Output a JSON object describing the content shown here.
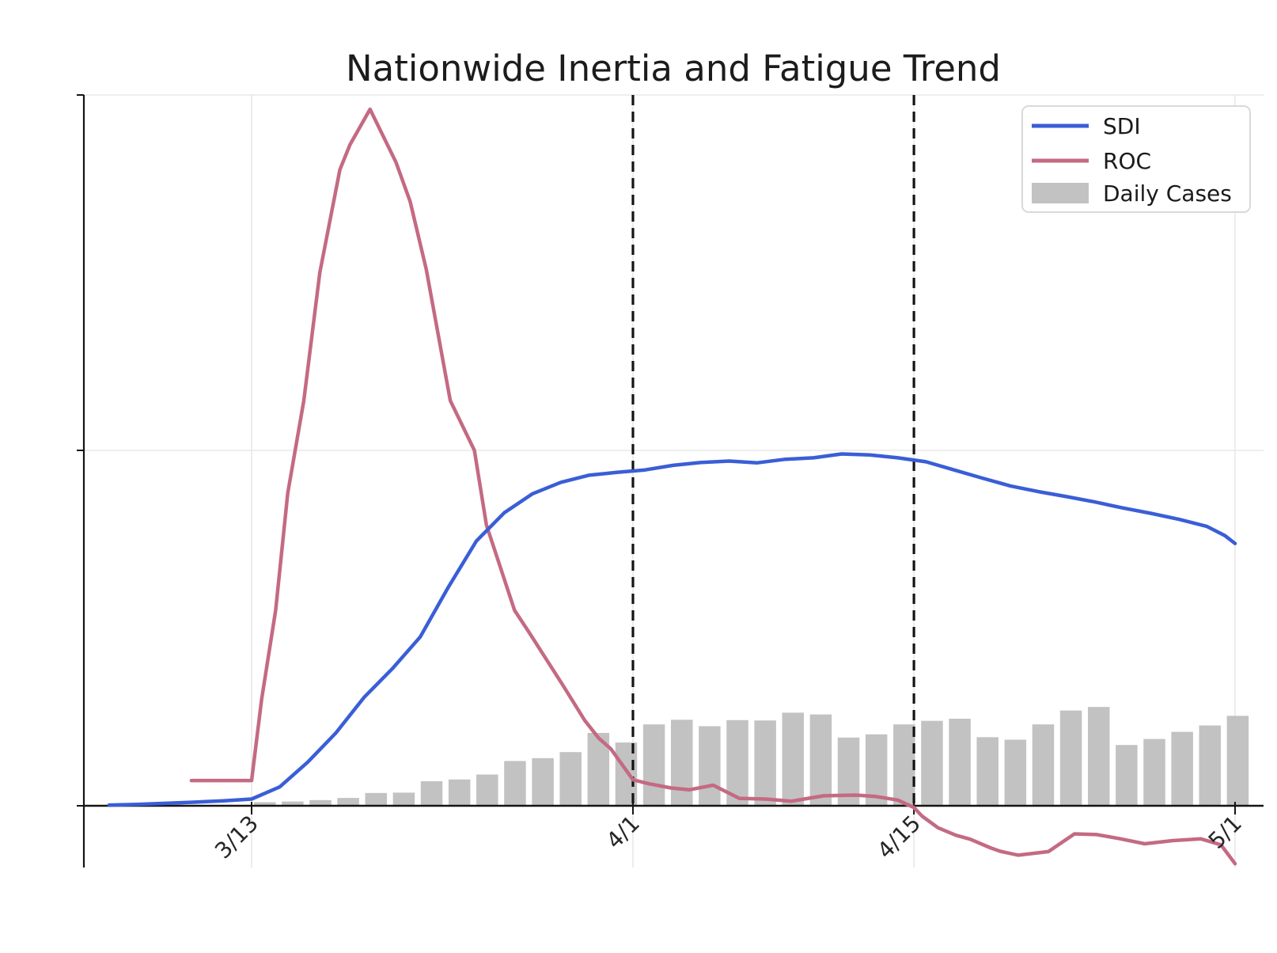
{
  "figure": {
    "title": "Nationwide Inertia and Fatigue Trend"
  },
  "chart_data": {
    "type": "line",
    "title": "Nationwide Inertia and Fatigue Trend",
    "x_axis": {
      "unit": "date",
      "tick_labels": [
        "3/13",
        "4/1",
        "4/15",
        "5/1"
      ],
      "tick_days": [
        0,
        19,
        33,
        49
      ]
    },
    "y_axis": {
      "tick_labels": [],
      "gridline_values": [
        1,
        2
      ],
      "range": [
        -0.175,
        2.0
      ],
      "grid": true
    },
    "event_vlines": [
      {
        "day": 19,
        "label": "4/1",
        "style": "dashed",
        "color": "#141414"
      },
      {
        "day": 33,
        "label": "4/15",
        "style": "dashed",
        "color": "#141414"
      }
    ],
    "legend": {
      "position": "upper right",
      "entries": [
        "SDI",
        "ROC",
        "Daily Cases"
      ]
    },
    "series": [
      {
        "name": "SDI",
        "type": "line",
        "color": "#3a5ed6",
        "points": [
          [
            -7.1,
            0.002
          ],
          [
            -5.7,
            0.004
          ],
          [
            -4.3,
            0.007
          ],
          [
            -2.9,
            0.01
          ],
          [
            -1.4,
            0.014
          ],
          [
            0,
            0.019
          ],
          [
            1.4,
            0.053
          ],
          [
            2.8,
            0.123
          ],
          [
            4.2,
            0.205
          ],
          [
            5.6,
            0.305
          ],
          [
            7.0,
            0.385
          ],
          [
            8.4,
            0.475
          ],
          [
            9.8,
            0.615
          ],
          [
            11.2,
            0.745
          ],
          [
            12.6,
            0.825
          ],
          [
            14.0,
            0.878
          ],
          [
            15.4,
            0.91
          ],
          [
            16.8,
            0.93
          ],
          [
            18.2,
            0.938
          ],
          [
            19.6,
            0.945
          ],
          [
            21.0,
            0.958
          ],
          [
            22.4,
            0.966
          ],
          [
            23.8,
            0.97
          ],
          [
            25.2,
            0.965
          ],
          [
            26.6,
            0.975
          ],
          [
            28.0,
            0.979
          ],
          [
            29.4,
            0.99
          ],
          [
            30.8,
            0.987
          ],
          [
            32.2,
            0.979
          ],
          [
            33.6,
            0.968
          ],
          [
            35.0,
            0.945
          ],
          [
            36.4,
            0.922
          ],
          [
            37.8,
            0.9
          ],
          [
            39.2,
            0.884
          ],
          [
            40.6,
            0.87
          ],
          [
            42.0,
            0.855
          ],
          [
            43.4,
            0.838
          ],
          [
            44.8,
            0.823
          ],
          [
            46.2,
            0.806
          ],
          [
            47.6,
            0.786
          ],
          [
            48.5,
            0.76
          ],
          [
            49.0,
            0.738
          ]
        ]
      },
      {
        "name": "ROC",
        "type": "line",
        "color": "#c46a82",
        "points": [
          [
            -3.0,
            0.071
          ],
          [
            0,
            0.071
          ],
          [
            0.5,
            0.3
          ],
          [
            1.2,
            0.55
          ],
          [
            1.8,
            0.88
          ],
          [
            2.6,
            1.14
          ],
          [
            3.4,
            1.5
          ],
          [
            4.4,
            1.79
          ],
          [
            4.9,
            1.86
          ],
          [
            5.9,
            1.96
          ],
          [
            7.2,
            1.81
          ],
          [
            7.9,
            1.7
          ],
          [
            8.7,
            1.51
          ],
          [
            9.9,
            1.14
          ],
          [
            11.1,
            1.0
          ],
          [
            11.7,
            0.79
          ],
          [
            13.1,
            0.55
          ],
          [
            13.8,
            0.49
          ],
          [
            15.5,
            0.34
          ],
          [
            16.6,
            0.24
          ],
          [
            17.3,
            0.19
          ],
          [
            17.9,
            0.16
          ],
          [
            19.0,
            0.073
          ],
          [
            19.8,
            0.062
          ],
          [
            20.9,
            0.05
          ],
          [
            21.8,
            0.045
          ],
          [
            23.0,
            0.058
          ],
          [
            24.3,
            0.021
          ],
          [
            25.6,
            0.019
          ],
          [
            26.9,
            0.013
          ],
          [
            28.5,
            0.028
          ],
          [
            30.1,
            0.03
          ],
          [
            31.1,
            0.026
          ],
          [
            32.2,
            0.016
          ],
          [
            33.0,
            -0.005
          ],
          [
            33.4,
            -0.029
          ],
          [
            34.2,
            -0.062
          ],
          [
            35.1,
            -0.083
          ],
          [
            35.8,
            -0.094
          ],
          [
            36.8,
            -0.118
          ],
          [
            37.3,
            -0.128
          ],
          [
            38.2,
            -0.139
          ],
          [
            39.7,
            -0.129
          ],
          [
            41.0,
            -0.079
          ],
          [
            42.1,
            -0.081
          ],
          [
            43.2,
            -0.092
          ],
          [
            44.5,
            -0.107
          ],
          [
            45.9,
            -0.098
          ],
          [
            47.3,
            -0.093
          ],
          [
            48.3,
            -0.11
          ],
          [
            49.0,
            -0.163
          ]
        ]
      },
      {
        "name": "Daily Cases",
        "type": "bar",
        "color": "#c2c2c2",
        "start_day": 0.66,
        "step_days": 1.385,
        "values": [
          0.01,
          0.012,
          0.016,
          0.022,
          0.036,
          0.037,
          0.069,
          0.074,
          0.088,
          0.126,
          0.134,
          0.151,
          0.205,
          0.178,
          0.229,
          0.242,
          0.224,
          0.241,
          0.24,
          0.262,
          0.257,
          0.192,
          0.201,
          0.229,
          0.239,
          0.245,
          0.193,
          0.186,
          0.229,
          0.268,
          0.278,
          0.171,
          0.188,
          0.208,
          0.226,
          0.253
        ]
      }
    ],
    "style": {
      "grid_color": "#e8e8e8",
      "axis_color": "#141414",
      "title_color": "#1c1c1c",
      "tick_label_color": "#262626",
      "legend_border_color": "#d9d9d9",
      "background": "#ffffff"
    }
  }
}
